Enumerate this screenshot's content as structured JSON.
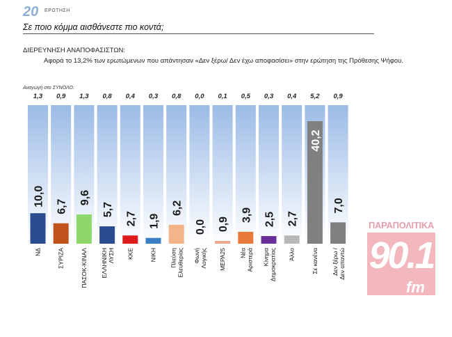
{
  "header": {
    "question_number": "20",
    "question_word": "ΕΡΩΤΗΣΗ",
    "title": "Σε ποιο κόμμα αισθάνεστε πιο κοντά;"
  },
  "subtitle": {
    "heading": "ΔΙΕΡΕΥΝΗΣΗ ΑΝΑΠΟΦΑΣΙΣΤΩΝ:",
    "note": "Αφορά το 13,2% των ερωτώμενων που απάντησαν «Δεν ξέρω/ Δεν έχω αποφασίσει» στην ερώτηση της Πρόθεσης Ψήφου."
  },
  "base_label": "Αναγωγή στο ΣΥΝΟΛΟ:",
  "logo": {
    "top_text": "ΠΑΡΑΠΟΛΙΤΙΚΑ",
    "number": "90.1",
    "suffix": "fm"
  },
  "colors": {
    "background_top": "#9bbbe6",
    "background_bottom": "#ffffff",
    "value_label": "#1a1a1a"
  },
  "chart_data": {
    "type": "bar",
    "title": "Σε ποιο κόμμα αισθάνεστε πιο κοντά;",
    "ylim": [
      0,
      45
    ],
    "grid": false,
    "categories": [
      "ΝΔ",
      "ΣΥΡΙΖΑ",
      "ΠΑΣΟΚ-ΚΙΝΑΛ",
      "ΕΛΛΗΝΙΚΗ ΛΥΣΗ",
      "ΚΚΕ",
      "ΝΙΚΗ",
      "Πλεύση Ελευθερίας",
      "Φωνή Λογικής",
      "ΜΕΡΑ25",
      "Νέα Αριστερά",
      "Κίνημα Δημοκρατίας",
      "Άλλο",
      "Σε κανένα",
      "Δεν ξέρω / Δεν απαντώ"
    ],
    "values": [
      10.0,
      6.7,
      9.6,
      5.7,
      2.7,
      1.9,
      6.2,
      0.0,
      0.9,
      3.9,
      2.5,
      2.7,
      40.2,
      7.0
    ],
    "value_labels": [
      "10,0",
      "6,7",
      "9,6",
      "5,7",
      "2,7",
      "1,9",
      "6,2",
      "0,0",
      "0,9",
      "3,9",
      "2,5",
      "2,7",
      "40,2",
      "7,0"
    ],
    "base_values": [
      "1,3",
      "0,9",
      "1,3",
      "0,8",
      "0,4",
      "0,3",
      "0,8",
      "0,0",
      "0,1",
      "0,5",
      "0,3",
      "0,4",
      "5,2",
      "0,9"
    ],
    "bar_colors": [
      "#2a4d8f",
      "#c0531c",
      "#8ed86b",
      "#2a4d8f",
      "#e01b1b",
      "#3a7fc4",
      "#f3b48a",
      "#a0b0c0",
      "#f0a890",
      "#e87a3c",
      "#6a2f9a",
      "#b8b8b8",
      "#808080",
      "#808080"
    ]
  }
}
